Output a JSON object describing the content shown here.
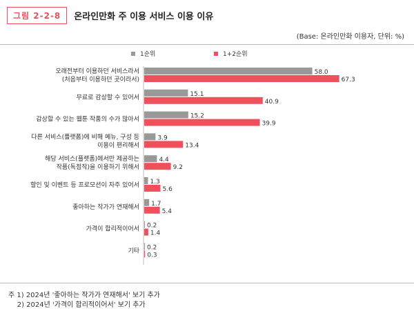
{
  "figure": {
    "tag": "그림 2-2-8",
    "title": "온라인만화 주 이용 서비스 이용 이유",
    "base": "(Base: 온라인만화 이용자, 단위: %)"
  },
  "notes": [
    "주 1) 2024년 '좋아하는 작가가 연재해서' 보기 추가",
    "    2) 2024년 '가격이 합리적이어서' 보기 추가"
  ],
  "colors": {
    "series1": "#999999",
    "series2": "#f0505c",
    "accent": "#e8505b"
  },
  "chart_data": {
    "type": "bar",
    "orientation": "horizontal",
    "categories": [
      [
        "오래전부터 이용하던 서비스라서",
        "(처음부터 이용하던 곳이라서)"
      ],
      [
        "무료로 감상할 수 있어서"
      ],
      [
        "감상할 수 있는 웹툰 작품의 수가 많아서"
      ],
      [
        "다른 서비스(플랫폼)에 비해 메뉴, 구성 등",
        "이용이 편리해서"
      ],
      [
        "해당 서비스(플랫폼)에서만 제공하는",
        "작품(독점작)을 이용하기 위해서"
      ],
      [
        "할인 및 이벤트 등 프로모션이 자주 있어서"
      ],
      [
        "좋아하는 작가가 연재해서"
      ],
      [
        "가격이 합리적이어서"
      ],
      [
        "기타"
      ]
    ],
    "series": [
      {
        "name": "1순위",
        "values": [
          58.0,
          15.1,
          15.2,
          3.9,
          4.4,
          1.3,
          1.7,
          0.2,
          0.2
        ]
      },
      {
        "name": "1+2순위",
        "values": [
          67.3,
          40.9,
          39.9,
          13.4,
          9.2,
          5.6,
          5.4,
          1.4,
          0.3
        ]
      }
    ],
    "value_labels": [
      [
        "58.0",
        "15.1",
        "15.2",
        "3.9",
        "4.4",
        "1.3",
        "1.7",
        "0.2",
        "0.2"
      ],
      [
        "67.3",
        "40.9",
        "39.9",
        "13.4",
        "9.2",
        "5.6",
        "5.4",
        "1.4",
        "0.3"
      ]
    ],
    "legend_position": "top",
    "grid": false
  }
}
